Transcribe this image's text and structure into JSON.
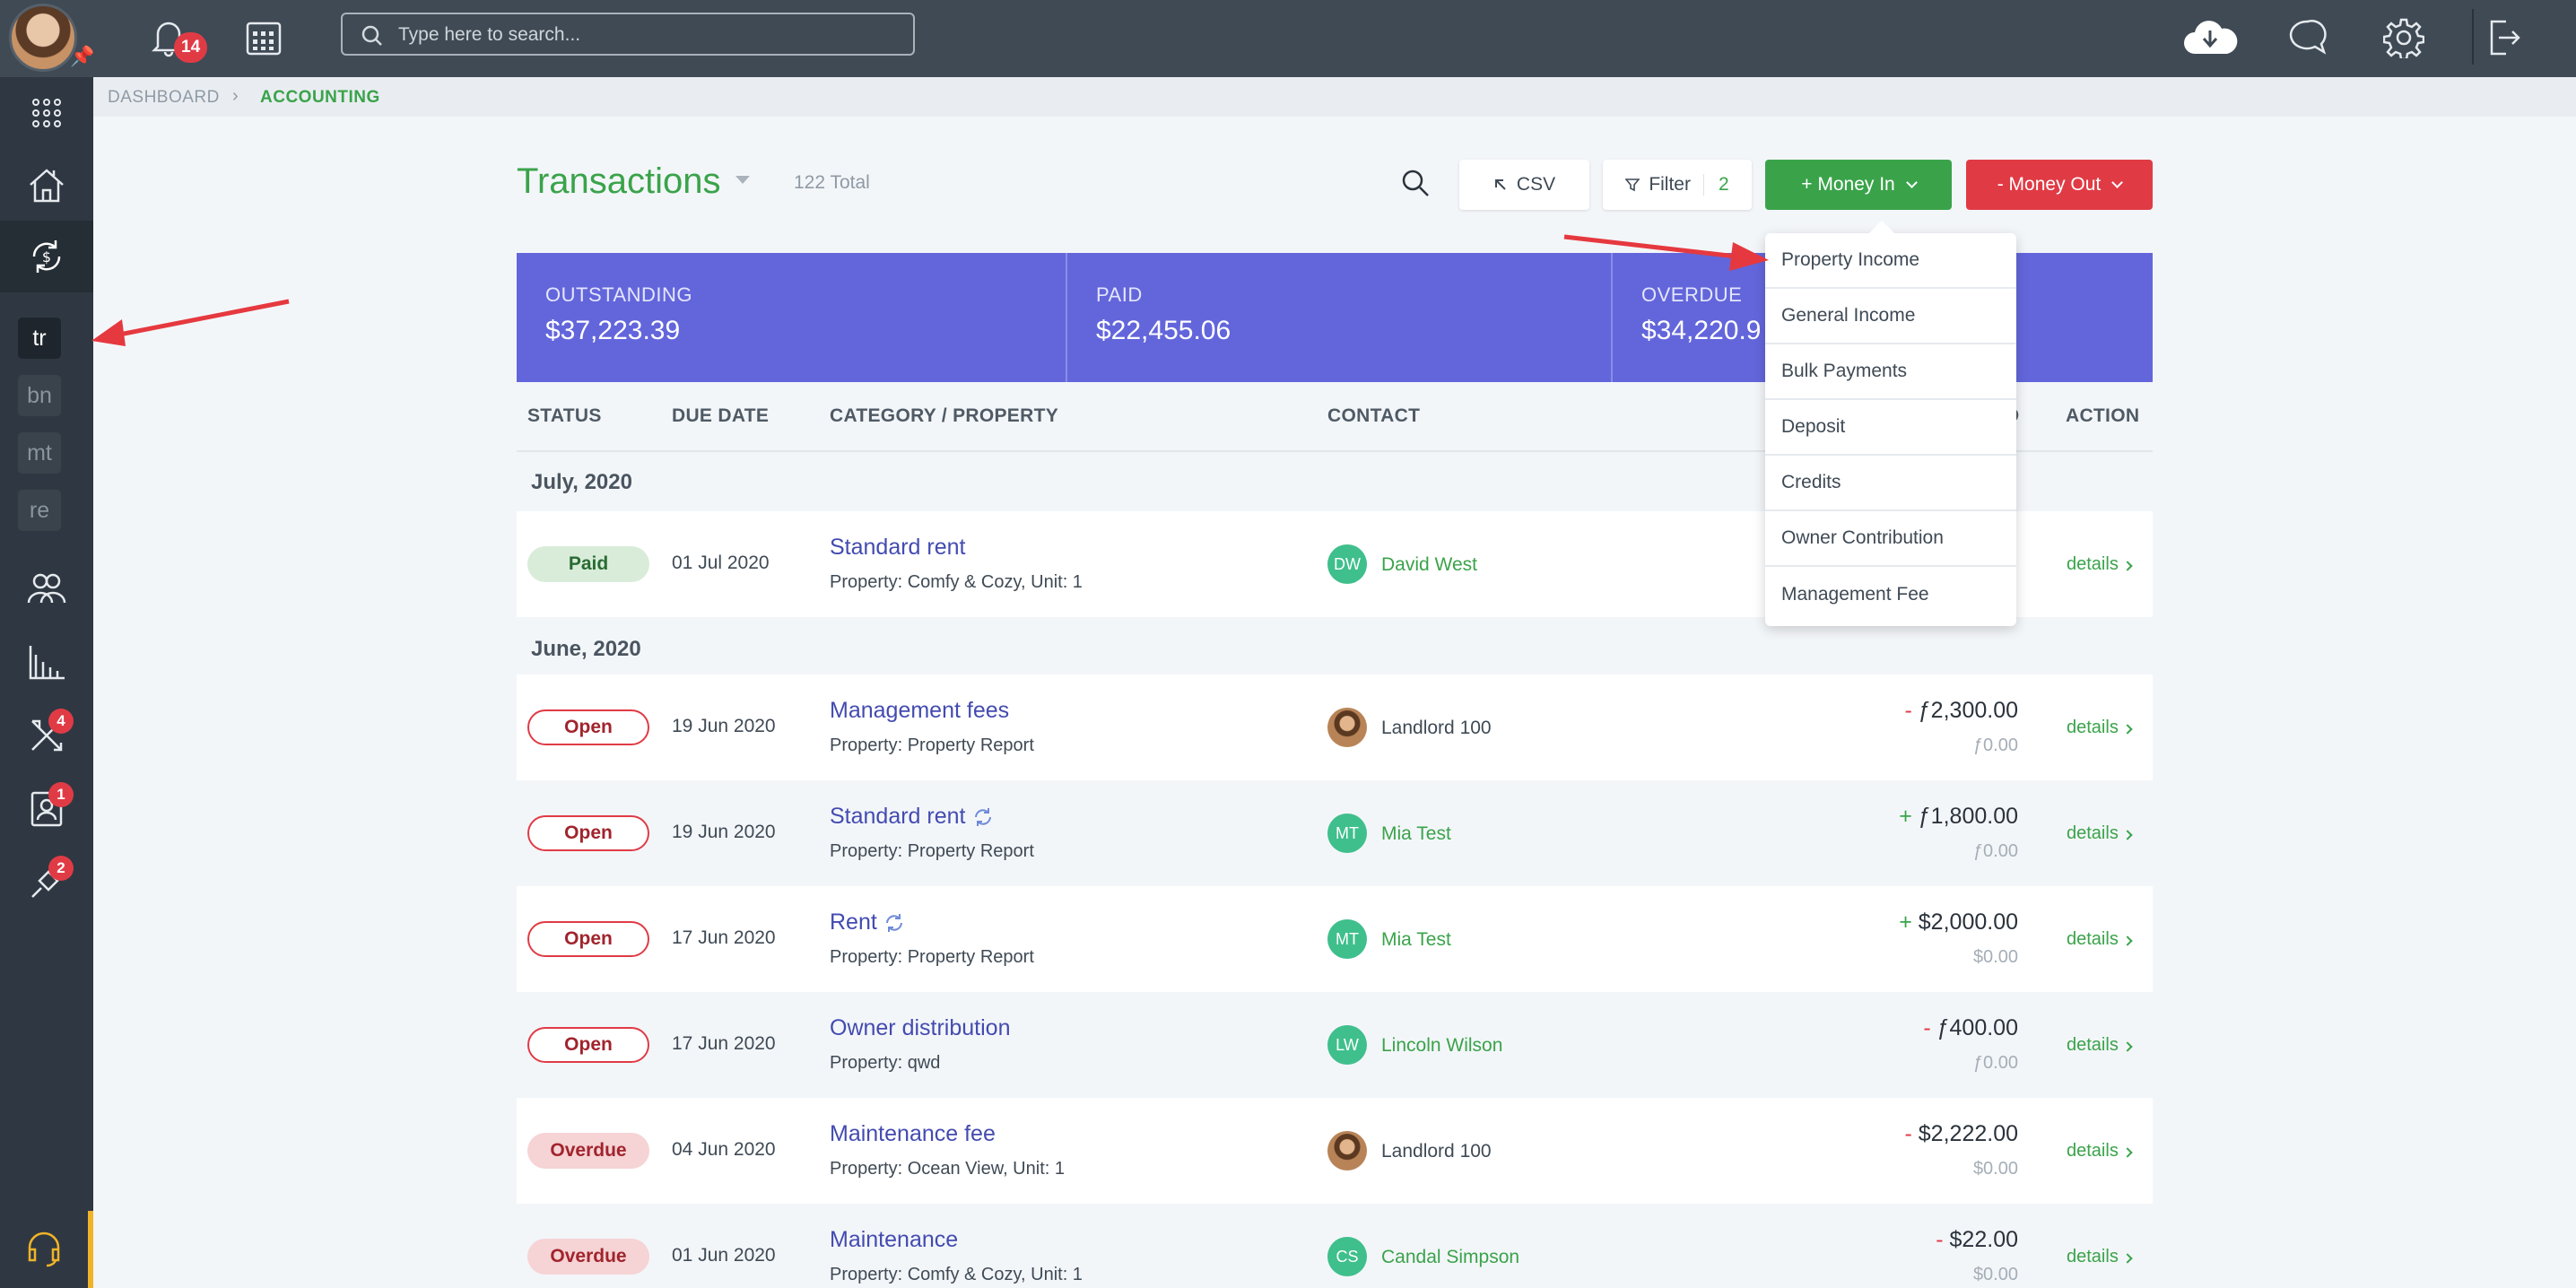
{
  "topbar": {
    "notifications_count": "14",
    "search_placeholder": "Type here to search..."
  },
  "sidebar": {
    "shortcuts": [
      "tr",
      "bn",
      "mt",
      "re"
    ],
    "tools_badge": "4",
    "contacts_badge": "1",
    "integrations_badge": "2"
  },
  "breadcrumb": {
    "root": "DASHBOARD",
    "current": "ACCOUNTING"
  },
  "page": {
    "title": "Transactions",
    "total": "122 Total"
  },
  "toolbar": {
    "csv_label": "CSV",
    "filter_label": "Filter",
    "filter_count": "2",
    "money_in_label": "+ Money In",
    "money_out_label": "- Money Out"
  },
  "summary": [
    {
      "label": "OUTSTANDING",
      "value": "$37,223.39"
    },
    {
      "label": "PAID",
      "value": "$22,455.06"
    },
    {
      "label": "OVERDUE",
      "value": "$34,220.9"
    }
  ],
  "table": {
    "headers": [
      "STATUS",
      "DUE DATE",
      "CATEGORY / PROPERTY",
      "CONTACT",
      "D",
      "ACTION"
    ],
    "groups": [
      "July, 2020",
      "June, 2020"
    ],
    "rows": [
      {
        "status": "Paid",
        "due": "01 Jul 2020",
        "category": "Standard rent",
        "property": "Property: Comfy & Cozy, Unit: 1",
        "initials": "DW",
        "contact": "David West",
        "sign": "",
        "amount": "",
        "amount2": "",
        "action": "details"
      },
      {
        "status": "Open",
        "due": "19 Jun 2020",
        "category": "Management fees",
        "property": "Property: Property Report",
        "initials": "",
        "contact": "Landlord 100",
        "sign": "-",
        "amount": "ƒ2,300.00",
        "amount2": "ƒ0.00",
        "action": "details"
      },
      {
        "status": "Open",
        "due": "19 Jun 2020",
        "category": "Standard rent",
        "property": "Property: Property Report",
        "initials": "MT",
        "contact": "Mia Test",
        "sign": "+",
        "amount": "ƒ1,800.00",
        "amount2": "ƒ0.00",
        "action": "details"
      },
      {
        "status": "Open",
        "due": "17 Jun 2020",
        "category": "Rent",
        "property": "Property: Property Report",
        "initials": "MT",
        "contact": "Mia Test",
        "sign": "+",
        "amount": "$2,000.00",
        "amount2": "$0.00",
        "action": "details"
      },
      {
        "status": "Open",
        "due": "17 Jun 2020",
        "category": "Owner distribution",
        "property": "Property: qwd",
        "initials": "LW",
        "contact": "Lincoln Wilson",
        "sign": "-",
        "amount": "ƒ400.00",
        "amount2": "ƒ0.00",
        "action": "details"
      },
      {
        "status": "Overdue",
        "due": "04 Jun 2020",
        "category": "Maintenance fee",
        "property": "Property: Ocean View, Unit: 1",
        "initials": "",
        "contact": "Landlord 100",
        "sign": "-",
        "amount": "$2,222.00",
        "amount2": "$0.00",
        "action": "details"
      },
      {
        "status": "Overdue",
        "due": "01 Jun 2020",
        "category": "Maintenance",
        "property": "Property: Comfy & Cozy, Unit: 1",
        "initials": "CS",
        "contact": "Candal Simpson",
        "sign": "-",
        "amount": "$22.00",
        "amount2": "$0.00",
        "action": "details"
      }
    ]
  },
  "money_in_menu": [
    "Property Income",
    "General Income",
    "Bulk Payments",
    "Deposit",
    "Credits",
    "Owner Contribution",
    "Management Fee"
  ],
  "colors": {
    "accent_green": "#3aa34a",
    "danger_red": "#e03b45",
    "summary_purple": "#6366db",
    "topbar": "#3f4a55",
    "annotation_arrow": "#e5393f"
  }
}
